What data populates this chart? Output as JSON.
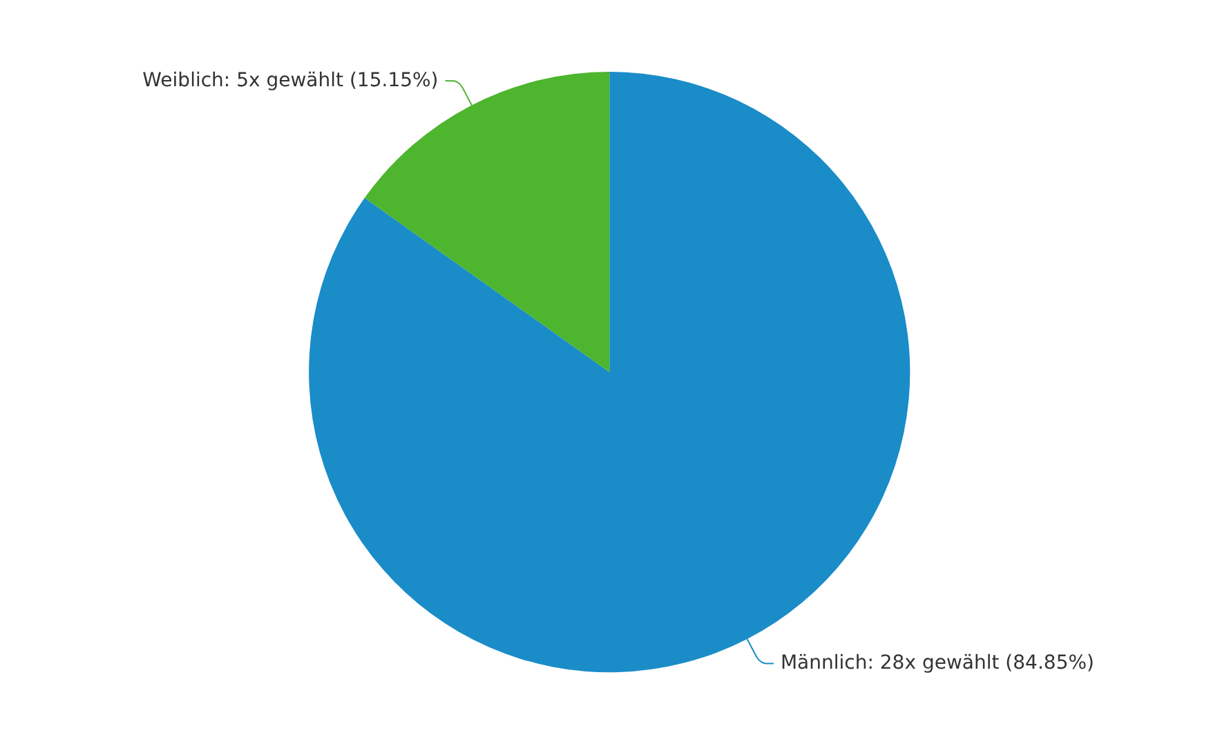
{
  "chart_data": {
    "type": "pie",
    "categories": [
      "Männlich",
      "Weiblich"
    ],
    "values": [
      28,
      5
    ],
    "value_labels": [
      "28x gewählt (84.85%)",
      "5x gewählt (15.15%)"
    ],
    "colors": [
      "#1a8cc8",
      "#4db52e"
    ],
    "legend": false
  }
}
